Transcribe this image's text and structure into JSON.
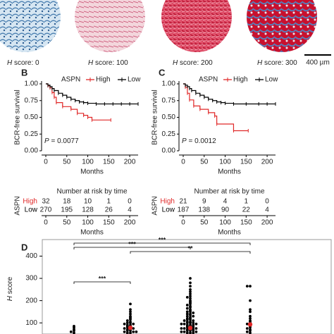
{
  "panel_a": {
    "images": [
      {
        "italic": "H",
        "text": " score: 0"
      },
      {
        "italic": "H",
        "text": " score: 100"
      },
      {
        "italic": "H",
        "text": " score: 200"
      },
      {
        "italic": "H",
        "text": " score: 300"
      }
    ],
    "scale_bar": "400 µm"
  },
  "km_panels": [
    {
      "label": "B",
      "type": "step",
      "y_label": "BCR-free survival",
      "x_label": "Months",
      "legend_title": "ASPN",
      "p_symbol": "P",
      "p_text": " = 0.0077",
      "xlim": [
        0,
        220
      ],
      "xticks": [
        0,
        50,
        100,
        150,
        200
      ],
      "ylim": [
        0,
        1
      ],
      "yticks": [
        {
          "value": 0,
          "label": "0.00"
        },
        {
          "value": 0.25,
          "label": "0.25"
        },
        {
          "value": 0.5,
          "label": "0.50"
        },
        {
          "value": 0.75,
          "label": "0.75"
        },
        {
          "value": 1,
          "label": "1.00"
        }
      ],
      "series": [
        {
          "name": "High",
          "color": "#e02828",
          "x": [
            0,
            5,
            10,
            15,
            20,
            25,
            40,
            60,
            75,
            90,
            100,
            110,
            155
          ],
          "values": [
            1,
            0.97,
            0.94,
            0.87,
            0.8,
            0.72,
            0.66,
            0.62,
            0.56,
            0.53,
            0.5,
            0.46,
            0.46
          ]
        },
        {
          "name": "Low",
          "color": "#000000",
          "x": [
            0,
            5,
            10,
            15,
            20,
            30,
            40,
            50,
            60,
            70,
            80,
            90,
            100,
            120,
            140,
            160,
            180,
            200,
            220
          ],
          "values": [
            1,
            0.98,
            0.96,
            0.93,
            0.9,
            0.86,
            0.83,
            0.8,
            0.77,
            0.75,
            0.73,
            0.72,
            0.71,
            0.7,
            0.7,
            0.7,
            0.7,
            0.7,
            0.7
          ]
        }
      ],
      "risk_table": {
        "title": "Number at risk by time",
        "row_axis_label": "ASPN",
        "x_label": "Months",
        "xticks": [
          0,
          50,
          100,
          150,
          200
        ],
        "rows": [
          {
            "name": "High",
            "color": "#e02828",
            "values": [
              32,
              18,
              10,
              1,
              0
            ]
          },
          {
            "name": "Low",
            "color": "#000000",
            "values": [
              270,
              195,
              128,
              26,
              4
            ]
          }
        ]
      }
    },
    {
      "label": "C",
      "type": "step",
      "y_label": "BCR-free survival",
      "x_label": "Months",
      "legend_title": "ASPN",
      "p_symbol": "P",
      "p_text": " = 0.0012",
      "xlim": [
        0,
        220
      ],
      "xticks": [
        0,
        50,
        100,
        150,
        200
      ],
      "ylim": [
        0,
        1
      ],
      "yticks": [
        {
          "value": 0,
          "label": "0.00"
        },
        {
          "value": 0.25,
          "label": "0.25"
        },
        {
          "value": 0.5,
          "label": "0.50"
        },
        {
          "value": 0.75,
          "label": "0.75"
        },
        {
          "value": 1,
          "label": "1.00"
        }
      ],
      "series": [
        {
          "name": "High",
          "color": "#e02828",
          "x": [
            0,
            5,
            10,
            15,
            25,
            40,
            60,
            75,
            80,
            120,
            155
          ],
          "values": [
            1,
            0.95,
            0.86,
            0.76,
            0.67,
            0.62,
            0.57,
            0.52,
            0.4,
            0.3,
            0.3
          ]
        },
        {
          "name": "Low",
          "color": "#000000",
          "x": [
            0,
            5,
            10,
            15,
            20,
            30,
            40,
            50,
            60,
            70,
            80,
            90,
            100,
            120,
            150,
            180,
            200,
            220
          ],
          "values": [
            1,
            0.98,
            0.96,
            0.93,
            0.9,
            0.86,
            0.83,
            0.8,
            0.77,
            0.75,
            0.73,
            0.72,
            0.71,
            0.7,
            0.7,
            0.7,
            0.7,
            0.7
          ]
        }
      ],
      "risk_table": {
        "title": "Number at risk by time",
        "row_axis_label": "ASPN",
        "x_label": "Months",
        "xticks": [
          0,
          50,
          100,
          150,
          200
        ],
        "rows": [
          {
            "name": "High",
            "color": "#e02828",
            "values": [
              21,
              9,
              4,
              1,
              0
            ]
          },
          {
            "name": "Low",
            "color": "#000000",
            "values": [
              187,
              138,
              90,
              22,
              4
            ]
          }
        ]
      }
    }
  ],
  "panel_d": {
    "label": "D",
    "type": "dot",
    "y_label": {
      "italic": "H",
      "text": " score"
    },
    "ylim": [
      50,
      430
    ],
    "yticks": [
      100,
      200,
      300,
      400
    ],
    "mean_color": "#e02828",
    "groups": [
      {
        "values": [
          85,
          78,
          70,
          65,
          60,
          55
        ]
      },
      {
        "values": [
          185,
          160,
          150,
          140,
          130,
          125,
          120,
          115,
          110,
          105,
          100,
          100,
          95,
          95,
          90,
          90,
          85,
          85,
          80,
          80,
          75,
          75,
          70,
          70,
          65,
          65,
          60,
          60,
          60,
          55,
          55
        ],
        "mean": 78
      },
      {
        "values": [
          300,
          280,
          265,
          250,
          240,
          230,
          220,
          215,
          210,
          200,
          195,
          190,
          185,
          180,
          175,
          170,
          165,
          160,
          155,
          150,
          150,
          145,
          140,
          140,
          135,
          130,
          130,
          125,
          120,
          120,
          115,
          115,
          110,
          110,
          105,
          105,
          100,
          100,
          100,
          95,
          95,
          95,
          90,
          90,
          90,
          85,
          85,
          85,
          80,
          80,
          80,
          75,
          75,
          75,
          70,
          70,
          70,
          65,
          65,
          65,
          60,
          60,
          60,
          55,
          55,
          55
        ],
        "mean": 77
      },
      {
        "values": [
          265,
          265,
          200,
          160,
          150,
          130,
          120,
          110,
          105,
          100,
          95,
          90,
          85,
          80,
          75,
          70,
          65,
          60,
          55
        ],
        "mean": 93
      }
    ],
    "brackets": [
      {
        "text": "***"
      },
      {
        "text": "***"
      },
      {
        "text": "**"
      },
      {
        "text": "***"
      }
    ]
  }
}
